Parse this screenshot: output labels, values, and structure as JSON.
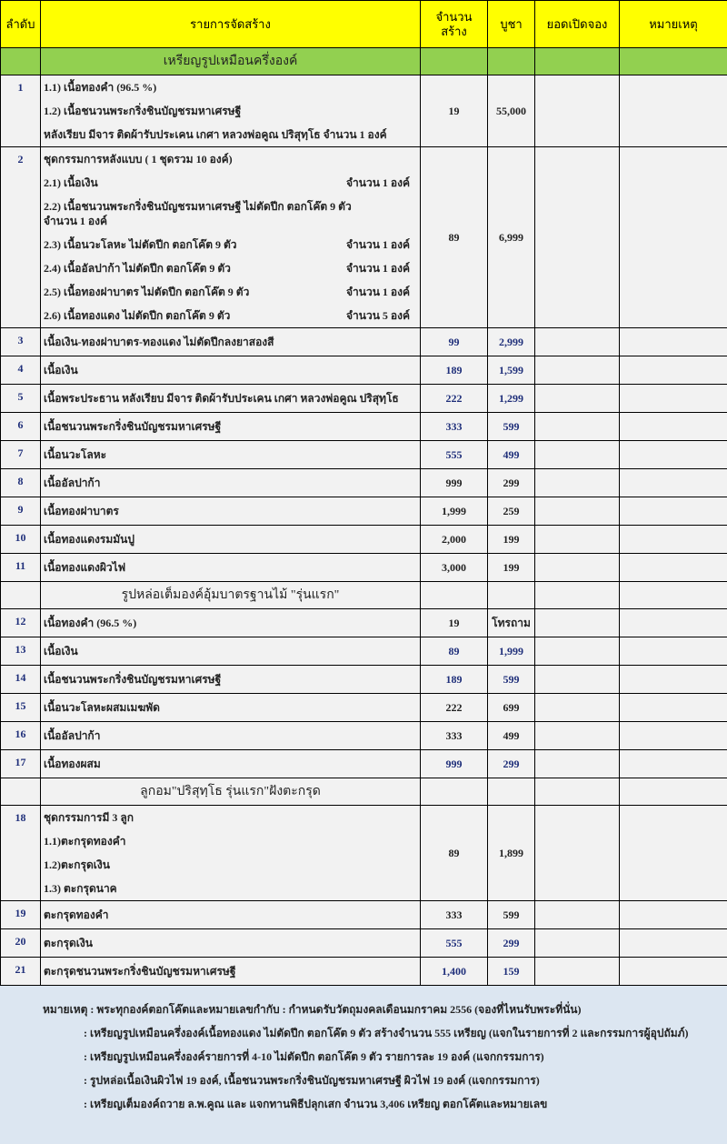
{
  "headers": [
    "ลำดับ",
    "รายการจัดสร้าง",
    "จำนวนสร้าง",
    "บูชา",
    "ยอดเปิดจอง",
    "หมายเหตุ"
  ],
  "colors": {
    "header": "#ffff00",
    "section": "#92d050",
    "row": "#f2f2f2",
    "notes": "#dce6f1",
    "number": "#1f2f7a"
  },
  "sections": [
    {
      "title": "เหรียญรูปเหมือนครึ่งองค์",
      "green": true,
      "rows": [
        {
          "no": "1",
          "lines": [
            [
              "1.1) เนื้อทองคำ (96.5 %)",
              ""
            ],
            [
              "1.2) เนื้อชนวนพระกริ่งชินบัญชรมหาเศรษฐี",
              ""
            ],
            [
              "หลังเรียบ มีจาร ติดผ้ารับประเคน เกศา หลวงพ่อคูณ ปริสุทฺโธ   จำนวน  1  องค์",
              ""
            ]
          ],
          "qty": "19",
          "price": "55,000"
        },
        {
          "no": "2",
          "lines": [
            [
              "ชุดกรรมการหลังแบบ ( 1 ชุดรวม 10 องค์)",
              ""
            ],
            [
              "2.1) เนื้อเงิน",
              "จำนวน  1  องค์"
            ],
            [
              "2.2) เนื้อชนวนพระกริ่งชินบัญชรมหาเศรษฐี ไม่ตัดปีก ตอกโค๊ต 9 ตัว",
              "จำนวน  1  องค์"
            ],
            [
              "2.3) เนื้อนวะโลหะ ไม่ตัดปีก ตอกโค๊ต 9 ตัว",
              "จำนวน  1  องค์"
            ],
            [
              "2.4) เนื้ออัลปาก้า ไม่ตัดปีก ตอกโค๊ต 9 ตัว",
              "จำนวน  1  องค์"
            ],
            [
              "2.5) เนื้อทองฝาบาตร ไม่ตัดปีก ตอกโค๊ต 9 ตัว",
              "จำนวน  1  องค์"
            ],
            [
              "2.6) เนื้อทองแดง ไม่ตัดปีก ตอกโค๊ต 9 ตัว",
              "จำนวน  5  องค์"
            ]
          ],
          "qty": "89",
          "price": "6,999"
        },
        {
          "no": "3",
          "lines": [
            [
              "เนื้อเงิน-ทองฝาบาตร-ทองแดง ไม่ตัดปีกลงยาสองสี",
              ""
            ]
          ],
          "qty": "99",
          "price": "2,999",
          "blue": true
        },
        {
          "no": "4",
          "lines": [
            [
              "เนื้อเงิน",
              ""
            ]
          ],
          "qty": "189",
          "price": "1,599",
          "blue": true
        },
        {
          "no": "5",
          "lines": [
            [
              "เนื้อพระประธาน หลังเรียบ มีจาร ติดผ้ารับประเคน เกศา หลวงพ่อคูณ ปริสุทฺโธ",
              ""
            ]
          ],
          "qty": "222",
          "price": "1,299",
          "blue": true
        },
        {
          "no": "6",
          "lines": [
            [
              "เนื้อชนวนพระกริ่งชินบัญชรมหาเศรษฐี",
              ""
            ]
          ],
          "qty": "333",
          "price": "599",
          "blue": true
        },
        {
          "no": "7",
          "lines": [
            [
              "เนื้อนวะโลหะ",
              ""
            ]
          ],
          "qty": "555",
          "price": "499",
          "blue": true
        },
        {
          "no": "8",
          "lines": [
            [
              "เนื้ออัลปาก้า",
              ""
            ]
          ],
          "qty": "999",
          "price": "299"
        },
        {
          "no": "9",
          "lines": [
            [
              "เนื้อทองฝาบาตร",
              ""
            ]
          ],
          "qty": "1,999",
          "price": "259"
        },
        {
          "no": "10",
          "lines": [
            [
              "เนื้อทองแดงรมมันปู",
              ""
            ]
          ],
          "qty": "2,000",
          "price": "199"
        },
        {
          "no": "11",
          "lines": [
            [
              "เนื้อทองแดงผิวไฟ",
              ""
            ]
          ],
          "qty": "3,000",
          "price": "199"
        }
      ]
    },
    {
      "title": "รูปหล่อเต็มองค์อุ้มบาตรฐานไม้ \"รุ่นแรก\"",
      "green": false,
      "rows": [
        {
          "no": "12",
          "lines": [
            [
              "เนื้อทองคำ (96.5 %)",
              ""
            ]
          ],
          "qty": "19",
          "price": "โทรถาม"
        },
        {
          "no": "13",
          "lines": [
            [
              "เนื้อเงิน",
              ""
            ]
          ],
          "qty": "89",
          "price": "1,999",
          "blue": true
        },
        {
          "no": "14",
          "lines": [
            [
              "เนื้อชนวนพระกริ่งชินบัญชรมหาเศรษฐี",
              ""
            ]
          ],
          "qty": "189",
          "price": "599",
          "blue": true
        },
        {
          "no": "15",
          "lines": [
            [
              "เนื้อนวะโลหะผสมเมฆพัด",
              ""
            ]
          ],
          "qty": "222",
          "price": "699"
        },
        {
          "no": "16",
          "lines": [
            [
              "เนื้ออัลปาก้า",
              ""
            ]
          ],
          "qty": "333",
          "price": "499"
        },
        {
          "no": "17",
          "lines": [
            [
              "เนื้อทองผสม",
              ""
            ]
          ],
          "qty": "999",
          "price": "299",
          "blue": true
        }
      ]
    },
    {
      "title": "ลูกอม\"ปริสุทฺโธ รุ่นแรก\"ฝังตะกรุด",
      "green": false,
      "rows": [
        {
          "no": "18",
          "lines": [
            [
              "ชุดกรรมการมี 3 ลูก",
              ""
            ],
            [
              "1.1)ตะกรุดทองคำ",
              ""
            ],
            [
              "1.2)ตะกรุดเงิน",
              ""
            ],
            [
              "1.3) ตะกรุดนาค",
              ""
            ]
          ],
          "qty": "89",
          "price": "1,899"
        },
        {
          "no": "19",
          "lines": [
            [
              "ตะกรุดทองคำ",
              ""
            ]
          ],
          "qty": "333",
          "price": "599"
        },
        {
          "no": "20",
          "lines": [
            [
              "ตะกรุดเงิน",
              ""
            ]
          ],
          "qty": "555",
          "price": "299",
          "blue": true
        },
        {
          "no": "21",
          "lines": [
            [
              "ตะกรุดชนวนพระกริ่งชินบัญชรมหาเศรษฐี",
              ""
            ]
          ],
          "qty": "1,400",
          "price": "159",
          "blue": true
        }
      ]
    }
  ],
  "notes": {
    "label": "หมายเหตุ : พระทุกองค์ตอกโค๊ตและหมายเลขกำกับ   : กำหนดรับวัตถุมงคลเดือนมกราคม 2556 (จองที่ไหนรับพระที่นั่น)",
    "lines": [
      ": เหรียญรูปเหมือนครึ่งองค์เนื้อทองแดง ไม่ตัดปีก ตอกโค๊ต 9 ตัว สร้างจำนวน 555 เหรียญ (แจกในรายการที่ 2 และกรรมการผู้อุปถัมภ์)",
      ": เหรียญรูปเหมือนครึ่งองค์รายการที่ 4-10 ไม่ตัดปีก ตอกโค๊ต 9 ตัว รายการละ 19 องค์ (แจกกรรมการ)",
      ": รูปหล่อเนื้อเงินผิวไฟ 19 องค์, เนื้อชนวนพระกริ่งชินบัญชรมหาเศรษฐี ผิวไฟ 19 องค์ (แจกกรรมการ)",
      ": เหรียญเต็มองค์ถวาย ล.พ.คูณ และ แจกทานพิธีปลุกเสก จำนวน 3,406 เหรียญ ตอกโค๊ตและหมายเลข"
    ]
  }
}
